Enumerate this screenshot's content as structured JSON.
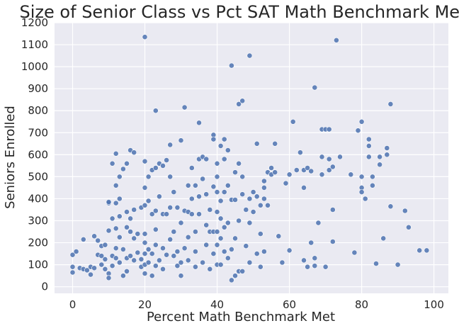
{
  "chart_data": {
    "type": "scatter",
    "title": "Size of Senior Class vs Pct SAT Math Benchmark Met",
    "xlabel": "Percent Math Benchmark Met",
    "ylabel": "Seniors Enrolled",
    "xlim": [
      -5,
      104
    ],
    "ylim": [
      -30,
      1200
    ],
    "xticks": [
      0,
      20,
      40,
      60,
      80,
      100
    ],
    "xtick_labels": [
      "0",
      "20",
      "40",
      "60",
      "80",
      "100"
    ],
    "yticks": [
      0,
      100,
      200,
      300,
      400,
      500,
      600,
      700,
      800,
      900,
      1000,
      1100,
      1200
    ],
    "ytick_labels": [
      "0",
      "100",
      "200",
      "300",
      "400",
      "500",
      "600",
      "700",
      "800",
      "900",
      "1000",
      "1100",
      "1200"
    ],
    "grid": true,
    "legend": "none",
    "colors": {
      "point": "#4C72B0",
      "background": "#EAEAF2",
      "grid": "#FFFFFF",
      "text": "#262626"
    },
    "points": [
      [
        0,
        145
      ],
      [
        0,
        90
      ],
      [
        0,
        65
      ],
      [
        1,
        160
      ],
      [
        2,
        85
      ],
      [
        3,
        215
      ],
      [
        3,
        80
      ],
      [
        4,
        75
      ],
      [
        5,
        55
      ],
      [
        5,
        90
      ],
      [
        6,
        230
      ],
      [
        6,
        85
      ],
      [
        7,
        145
      ],
      [
        7,
        210
      ],
      [
        8,
        185
      ],
      [
        8,
        140
      ],
      [
        8,
        100
      ],
      [
        9,
        125
      ],
      [
        9,
        80
      ],
      [
        9,
        190
      ],
      [
        10,
        60
      ],
      [
        10,
        40
      ],
      [
        10,
        380
      ],
      [
        10,
        385
      ],
      [
        10,
        255
      ],
      [
        11,
        560
      ],
      [
        11,
        310
      ],
      [
        11,
        140
      ],
      [
        11,
        95
      ],
      [
        12,
        605
      ],
      [
        12,
        460
      ],
      [
        12,
        380
      ],
      [
        12,
        265
      ],
      [
        12,
        175
      ],
      [
        12,
        130
      ],
      [
        13,
        500
      ],
      [
        13,
        400
      ],
      [
        13,
        320
      ],
      [
        13,
        225
      ],
      [
        13,
        110
      ],
      [
        14,
        535
      ],
      [
        14,
        170
      ],
      [
        14,
        50
      ],
      [
        15,
        560
      ],
      [
        15,
        340
      ],
      [
        15,
        270
      ],
      [
        15,
        130
      ],
      [
        15,
        70
      ],
      [
        16,
        620
      ],
      [
        16,
        310
      ],
      [
        16,
        250
      ],
      [
        16,
        140
      ],
      [
        17,
        610
      ],
      [
        17,
        350
      ],
      [
        17,
        220
      ],
      [
        17,
        120
      ],
      [
        18,
        240
      ],
      [
        18,
        155
      ],
      [
        19,
        360
      ],
      [
        19,
        125
      ],
      [
        19,
        90
      ],
      [
        20,
        1135
      ],
      [
        20,
        570
      ],
      [
        20,
        450
      ],
      [
        20,
        370
      ],
      [
        20,
        240
      ],
      [
        20,
        200
      ],
      [
        20,
        150
      ],
      [
        20,
        100
      ],
      [
        20,
        60
      ],
      [
        21,
        500
      ],
      [
        21,
        390
      ],
      [
        21,
        170
      ],
      [
        21,
        110
      ],
      [
        22,
        530
      ],
      [
        22,
        330
      ],
      [
        22,
        150
      ],
      [
        22,
        50
      ],
      [
        23,
        800
      ],
      [
        23,
        540
      ],
      [
        23,
        345
      ],
      [
        23,
        260
      ],
      [
        23,
        190
      ],
      [
        23,
        95
      ],
      [
        24,
        560
      ],
      [
        24,
        410
      ],
      [
        24,
        120
      ],
      [
        25,
        550
      ],
      [
        25,
        330
      ],
      [
        25,
        175
      ],
      [
        25,
        80
      ],
      [
        26,
        575
      ],
      [
        26,
        330
      ],
      [
        26,
        145
      ],
      [
        27,
        645
      ],
      [
        27,
        500
      ],
      [
        27,
        360
      ],
      [
        27,
        215
      ],
      [
        28,
        430
      ],
      [
        28,
        250
      ],
      [
        28,
        140
      ],
      [
        29,
        360
      ],
      [
        29,
        160
      ],
      [
        29,
        95
      ],
      [
        30,
        665
      ],
      [
        30,
        290
      ],
      [
        30,
        110
      ],
      [
        30,
        50
      ],
      [
        31,
        815
      ],
      [
        31,
        345
      ],
      [
        31,
        175
      ],
      [
        32,
        460
      ],
      [
        32,
        340
      ],
      [
        32,
        225
      ],
      [
        32,
        120
      ],
      [
        33,
        540
      ],
      [
        33,
        400
      ],
      [
        33,
        330
      ],
      [
        34,
        460
      ],
      [
        34,
        250
      ],
      [
        34,
        160
      ],
      [
        34,
        90
      ],
      [
        35,
        745
      ],
      [
        35,
        580
      ],
      [
        35,
        410
      ],
      [
        35,
        330
      ],
      [
        36,
        590
      ],
      [
        36,
        490
      ],
      [
        36,
        110
      ],
      [
        37,
        580
      ],
      [
        37,
        420
      ],
      [
        37,
        280
      ],
      [
        37,
        190
      ],
      [
        38,
        350
      ],
      [
        38,
        250
      ],
      [
        38,
        80
      ],
      [
        39,
        690
      ],
      [
        39,
        670
      ],
      [
        39,
        455
      ],
      [
        39,
        250
      ],
      [
        39,
        150
      ],
      [
        40,
        560
      ],
      [
        40,
        500
      ],
      [
        40,
        430
      ],
      [
        40,
        340
      ],
      [
        40,
        250
      ],
      [
        40,
        190
      ],
      [
        40,
        100
      ],
      [
        41,
        640
      ],
      [
        41,
        390
      ],
      [
        41,
        310
      ],
      [
        41,
        220
      ],
      [
        41,
        100
      ],
      [
        42,
        670
      ],
      [
        42,
        580
      ],
      [
        42,
        430
      ],
      [
        42,
        270
      ],
      [
        42,
        160
      ],
      [
        43,
        620
      ],
      [
        43,
        460
      ],
      [
        43,
        290
      ],
      [
        43,
        130
      ],
      [
        44,
        1005
      ],
      [
        44,
        395
      ],
      [
        44,
        170
      ],
      [
        44,
        30
      ],
      [
        45,
        520
      ],
      [
        45,
        395
      ],
      [
        45,
        220
      ],
      [
        45,
        50
      ],
      [
        46,
        830
      ],
      [
        46,
        560
      ],
      [
        46,
        300
      ],
      [
        46,
        70
      ],
      [
        47,
        845
      ],
      [
        47,
        500
      ],
      [
        47,
        420
      ],
      [
        47,
        70
      ],
      [
        48,
        350
      ],
      [
        48,
        185
      ],
      [
        49,
        1050
      ],
      [
        49,
        400
      ],
      [
        49,
        290
      ],
      [
        49,
        110
      ],
      [
        50,
        430
      ],
      [
        50,
        340
      ],
      [
        51,
        650
      ],
      [
        51,
        410
      ],
      [
        51,
        150
      ],
      [
        52,
        370
      ],
      [
        52,
        240
      ],
      [
        52,
        90
      ],
      [
        53,
        480
      ],
      [
        53,
        450
      ],
      [
        53,
        400
      ],
      [
        53,
        160
      ],
      [
        54,
        520
      ],
      [
        54,
        370
      ],
      [
        55,
        540
      ],
      [
        55,
        510
      ],
      [
        56,
        650
      ],
      [
        56,
        520
      ],
      [
        57,
        230
      ],
      [
        58,
        110
      ],
      [
        59,
        470
      ],
      [
        60,
        510
      ],
      [
        60,
        165
      ],
      [
        61,
        750
      ],
      [
        62,
        530
      ],
      [
        63,
        610
      ],
      [
        64,
        530
      ],
      [
        64,
        450
      ],
      [
        64,
        120
      ],
      [
        65,
        540
      ],
      [
        65,
        90
      ],
      [
        66,
        525
      ],
      [
        66,
        200
      ],
      [
        67,
        905
      ],
      [
        67,
        130
      ],
      [
        67,
        95
      ],
      [
        68,
        290
      ],
      [
        69,
        715
      ],
      [
        69,
        590
      ],
      [
        69,
        510
      ],
      [
        70,
        715
      ],
      [
        70,
        90
      ],
      [
        71,
        715
      ],
      [
        71,
        580
      ],
      [
        71,
        530
      ],
      [
        72,
        545
      ],
      [
        72,
        350
      ],
      [
        72,
        205
      ],
      [
        73,
        1120
      ],
      [
        74,
        590
      ],
      [
        77,
        510
      ],
      [
        78,
        155
      ],
      [
        79,
        710
      ],
      [
        80,
        750
      ],
      [
        80,
        500
      ],
      [
        80,
        450
      ],
      [
        80,
        430
      ],
      [
        81,
        400
      ],
      [
        82,
        670
      ],
      [
        82,
        640
      ],
      [
        82,
        590
      ],
      [
        83,
        500
      ],
      [
        83,
        460
      ],
      [
        84,
        105
      ],
      [
        85,
        555
      ],
      [
        85,
        590
      ],
      [
        86,
        220
      ],
      [
        87,
        600
      ],
      [
        87,
        630
      ],
      [
        88,
        830
      ],
      [
        88,
        365
      ],
      [
        90,
        100
      ],
      [
        92,
        345
      ],
      [
        93,
        270
      ],
      [
        96,
        165
      ],
      [
        98,
        165
      ]
    ]
  }
}
